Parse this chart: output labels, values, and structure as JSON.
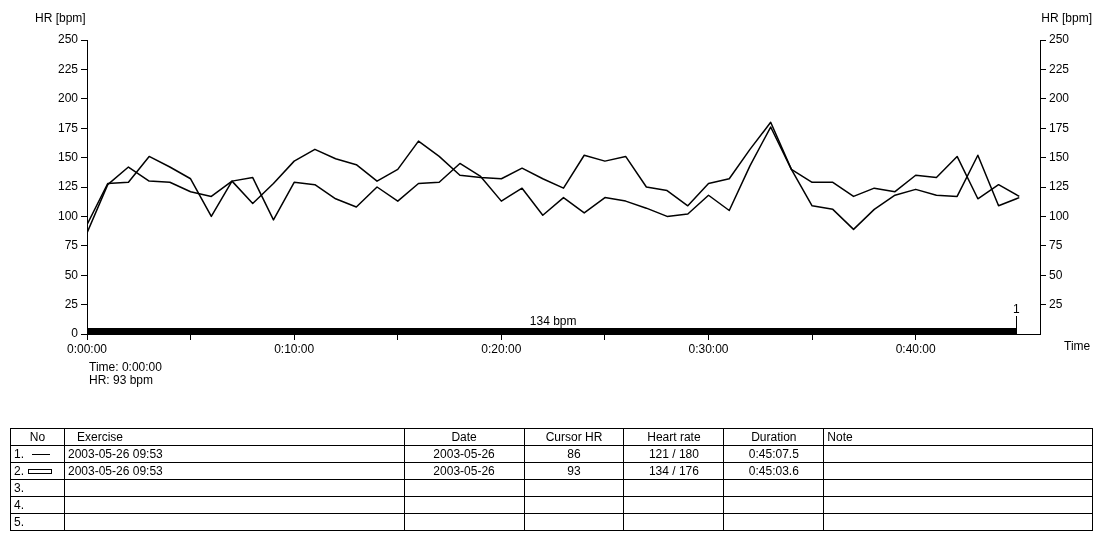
{
  "chart_data": {
    "type": "line",
    "xlabel": "Time",
    "ylabel": "HR [bpm]",
    "y2label": "HR [bpm]",
    "x": [
      0,
      1,
      2,
      3,
      4,
      5,
      6,
      7,
      8,
      9,
      10,
      11,
      12,
      13,
      14,
      15,
      16,
      17,
      18,
      19,
      20,
      21,
      22,
      23,
      24,
      25,
      26,
      27,
      28,
      29,
      30,
      31,
      32,
      33,
      34,
      35,
      36,
      37,
      38,
      39,
      40,
      41,
      42,
      43,
      44,
      45
    ],
    "series": [
      {
        "color": "#000000",
        "values": [
          86,
          127,
          142,
          130,
          129,
          121,
          117,
          130,
          111,
          128,
          147,
          157,
          149,
          144,
          130,
          140,
          164,
          151,
          135,
          133,
          132,
          141,
          132,
          124,
          152,
          147,
          151,
          125,
          122,
          109,
          128,
          132,
          157,
          180,
          140,
          129,
          129,
          117,
          124,
          121,
          135,
          133,
          151,
          115,
          127,
          117
        ]
      },
      {
        "color": "#000000",
        "values": [
          93,
          128,
          129,
          151,
          142,
          132,
          100,
          130,
          133,
          97,
          129,
          127,
          115,
          108,
          125,
          113,
          128,
          129,
          145,
          134,
          113,
          124,
          101,
          116,
          103,
          116,
          113,
          107,
          100,
          102,
          118,
          105,
          143,
          176,
          140,
          109,
          106,
          89,
          106,
          118,
          123,
          118,
          117,
          152,
          109,
          116
        ]
      }
    ],
    "xlim": [
      0,
      46
    ],
    "xticks": [
      {
        "value": 0,
        "label": "0:00:00"
      },
      {
        "value": 5,
        "label": null
      },
      {
        "value": 10,
        "label": "0:10:00"
      },
      {
        "value": 15,
        "label": null
      },
      {
        "value": 20,
        "label": "0:20:00"
      },
      {
        "value": 25,
        "label": null
      },
      {
        "value": 30,
        "label": "0:30:00"
      },
      {
        "value": 35,
        "label": null
      },
      {
        "value": 40,
        "label": "0:40:00"
      }
    ],
    "ylim": [
      0,
      250
    ],
    "yticks": [
      0,
      25,
      50,
      75,
      100,
      125,
      150,
      175,
      200,
      225,
      250
    ],
    "y2lim": [
      0,
      250
    ],
    "y2ticks": [
      25,
      50,
      75,
      100,
      125,
      150,
      175,
      200,
      225,
      250
    ],
    "grid": false,
    "legend": false,
    "marker": "none",
    "line_style": "solid",
    "annotations": [
      "Time: 0:00:00",
      "HR: 93 bpm",
      "134 bpm",
      "1",
      "No",
      "Exercise",
      "Date",
      "Cursor HR",
      "Heart rate",
      "Duration",
      "Note",
      "1.",
      "2003-05-26 09:53",
      "2003-05-26",
      "86",
      "121 / 180",
      "0:45:07.5",
      "2.",
      "2003-05-26 09:53",
      "2003-05-26",
      "93",
      "134 / 176",
      "0:45:03.6",
      "3.",
      "4.",
      "5."
    ]
  }
}
